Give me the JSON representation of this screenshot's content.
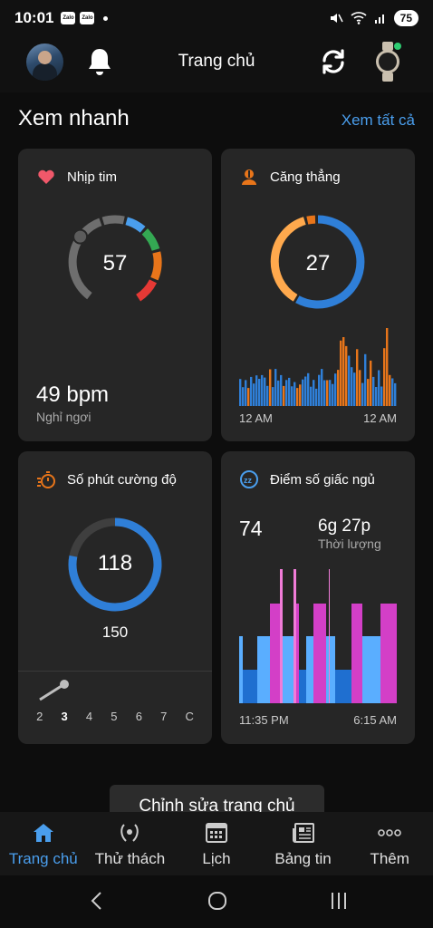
{
  "status_bar": {
    "time": "10:01",
    "notif_apps": [
      "Zalo",
      "Zalo"
    ],
    "battery": "75"
  },
  "header": {
    "title": "Trang chủ"
  },
  "quick_view": {
    "title": "Xem nhanh",
    "see_all": "Xem tất cả"
  },
  "cards": {
    "heart_rate": {
      "label": "Nhịp tim",
      "value": "57",
      "bpm": "49 bpm",
      "sub": "Nghỉ ngơi"
    },
    "stress": {
      "label": "Căng thẳng",
      "value": "27",
      "x_start": "12 AM",
      "x_end": "12 AM"
    },
    "intensity": {
      "label": "Số phút cường độ",
      "value": "118",
      "goal": "150",
      "days": [
        "2",
        "3",
        "4",
        "5",
        "6",
        "7",
        "C"
      ],
      "active_day": "3"
    },
    "sleep": {
      "label": "Điểm số giấc ngủ",
      "score": "74",
      "duration": "6g 27p",
      "duration_label": "Thời lượng",
      "x_start": "11:35 PM",
      "x_end": "6:15 AM"
    }
  },
  "edit_button": "Chỉnh sửa trang chủ",
  "bottom_nav": [
    {
      "label": "Trang chủ",
      "icon": "home-icon",
      "active": true
    },
    {
      "label": "Thử thách",
      "icon": "laurel-icon",
      "active": false
    },
    {
      "label": "Lịch",
      "icon": "calendar-icon",
      "active": false
    },
    {
      "label": "Bảng tin",
      "icon": "news-icon",
      "active": false
    },
    {
      "label": "Thêm",
      "icon": "more-icon",
      "active": false
    }
  ],
  "colors": {
    "accent": "#4a9eed",
    "stress_blue": "#2f7fd8",
    "stress_orange": "#e8751a",
    "sleep_deep": "#1f6fd0",
    "sleep_light": "#5aaeff",
    "sleep_rem": "#d33fc7",
    "sleep_awake": "#f07cd8"
  }
}
